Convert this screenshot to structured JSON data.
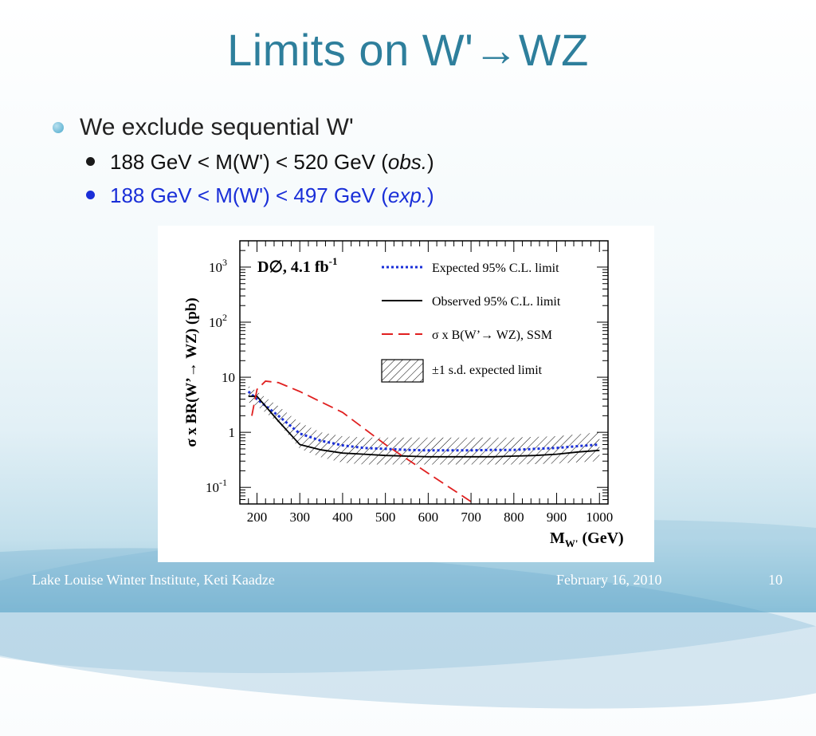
{
  "slide": {
    "title": "Limits on W'→WZ",
    "bullet_main": "We exclude sequential W'",
    "sub_bullets": [
      {
        "text_pre": "188 GeV < M(W') < 520 GeV (",
        "text_italic": "obs.",
        "text_post": ")"
      },
      {
        "text_pre": "188 GeV < M(W') < 497 GeV (",
        "text_italic": "exp.",
        "text_post": ")"
      }
    ],
    "colors": {
      "title": "#2e7f9c",
      "blue_text": "#1a2fd8"
    }
  },
  "footer": {
    "left": "Lake Louise Winter Institute, Keti Kaadze",
    "date": "February 16, 2010",
    "page": "10"
  },
  "chart_data": {
    "type": "line",
    "experiment_label": "D∅, 4.1 fb",
    "experiment_sup": "-1",
    "ylabel": "σ x BR(W’→ WZ) (pb)",
    "xlabel_main": "M",
    "xlabel_sub": "W'",
    "xlabel_unit": " (GeV)",
    "xlim": [
      160,
      1020
    ],
    "ylim": [
      0.05,
      3000
    ],
    "yscale": "log",
    "xticks": [
      200,
      300,
      400,
      500,
      600,
      700,
      800,
      900,
      1000
    ],
    "yticks": [
      {
        "value": 0.1,
        "base": "10",
        "exp": "-1"
      },
      {
        "value": 1,
        "base": "1",
        "exp": ""
      },
      {
        "value": 10,
        "base": "10",
        "exp": ""
      },
      {
        "value": 100,
        "base": "10",
        "exp": "2"
      },
      {
        "value": 1000,
        "base": "10",
        "exp": "3"
      }
    ],
    "legend_position": "top-right",
    "band": {
      "name": "±1 s.d. expected limit",
      "x": [
        180,
        200,
        250,
        300,
        350,
        400,
        450,
        500,
        600,
        700,
        800,
        900,
        1000
      ],
      "upper": [
        7.0,
        5.5,
        3.0,
        1.5,
        1.0,
        0.85,
        0.8,
        0.8,
        0.8,
        0.8,
        0.8,
        0.85,
        1.0
      ],
      "lower": [
        3.5,
        3.0,
        1.5,
        0.5,
        0.35,
        0.28,
        0.26,
        0.26,
        0.26,
        0.26,
        0.26,
        0.27,
        0.3
      ]
    },
    "series": [
      {
        "name": "Expected 95% C.L. limit",
        "color": "#1a2fd8",
        "style": "dotted",
        "x": [
          180,
          200,
          250,
          300,
          350,
          400,
          450,
          500,
          550,
          600,
          650,
          700,
          750,
          800,
          850,
          900,
          950,
          1000
        ],
        "y": [
          5.5,
          4.0,
          2.0,
          0.95,
          0.7,
          0.58,
          0.52,
          0.5,
          0.48,
          0.47,
          0.47,
          0.47,
          0.48,
          0.48,
          0.5,
          0.52,
          0.56,
          0.6
        ]
      },
      {
        "name": "Observed 95% C.L. limit",
        "color": "#000000",
        "style": "solid",
        "x": [
          180,
          200,
          250,
          300,
          350,
          400,
          450,
          500,
          550,
          600,
          650,
          700,
          750,
          800,
          850,
          900,
          950,
          1000
        ],
        "y": [
          4.5,
          4.5,
          1.6,
          0.6,
          0.48,
          0.42,
          0.4,
          0.38,
          0.37,
          0.36,
          0.36,
          0.36,
          0.36,
          0.37,
          0.38,
          0.4,
          0.44,
          0.47
        ]
      },
      {
        "name": "σ x B(W’→ WZ), SSM",
        "color": "#e02020",
        "style": "dashed",
        "x": [
          188,
          200,
          220,
          250,
          300,
          400,
          500,
          600,
          700
        ],
        "y": [
          2.0,
          6.0,
          8.5,
          8.0,
          5.5,
          2.3,
          0.6,
          0.18,
          0.055
        ]
      }
    ],
    "band_legend": "±1 s.d. expected limit"
  }
}
